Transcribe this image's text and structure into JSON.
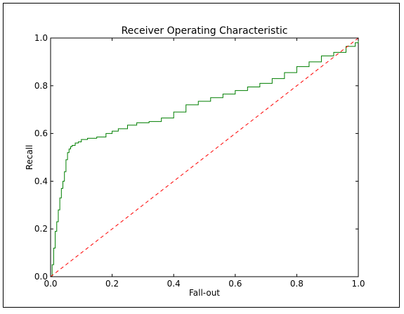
{
  "chart_data": {
    "type": "line",
    "title": "Receiver Operating Characteristic",
    "xlabel": "Fall-out",
    "ylabel": "Recall",
    "xlim": [
      0.0,
      1.0
    ],
    "ylim": [
      0.0,
      1.0
    ],
    "grid": false,
    "legend": "none",
    "x_ticks": [
      0.0,
      0.2,
      0.4,
      0.6,
      0.8,
      1.0
    ],
    "y_ticks": [
      0.0,
      0.2,
      0.4,
      0.6,
      0.8,
      1.0
    ],
    "x_tick_labels": [
      "0.0",
      "0.2",
      "0.4",
      "0.6",
      "0.8",
      "1.0"
    ],
    "y_tick_labels": [
      "0.0",
      "0.2",
      "0.4",
      "0.6",
      "0.8",
      "1.0"
    ],
    "series": [
      {
        "color": "#007f00",
        "style": "solid",
        "x": [
          0.0,
          0.005,
          0.01,
          0.015,
          0.02,
          0.025,
          0.03,
          0.035,
          0.04,
          0.045,
          0.05,
          0.055,
          0.06,
          0.065,
          0.07,
          0.08,
          0.09,
          0.1,
          0.12,
          0.15,
          0.18,
          0.2,
          0.22,
          0.25,
          0.28,
          0.32,
          0.36,
          0.4,
          0.44,
          0.48,
          0.52,
          0.56,
          0.6,
          0.64,
          0.68,
          0.72,
          0.76,
          0.8,
          0.84,
          0.88,
          0.92,
          0.96,
          0.99,
          1.0
        ],
        "y": [
          0.0,
          0.05,
          0.12,
          0.19,
          0.23,
          0.28,
          0.33,
          0.37,
          0.4,
          0.44,
          0.49,
          0.52,
          0.535,
          0.545,
          0.55,
          0.56,
          0.565,
          0.575,
          0.58,
          0.585,
          0.6,
          0.61,
          0.62,
          0.635,
          0.645,
          0.65,
          0.665,
          0.69,
          0.72,
          0.735,
          0.75,
          0.765,
          0.78,
          0.795,
          0.81,
          0.83,
          0.855,
          0.88,
          0.9,
          0.925,
          0.94,
          0.965,
          0.98,
          1.0
        ]
      },
      {
        "color": "#ff0000",
        "style": "dashed",
        "x": [
          0.0,
          1.0
        ],
        "y": [
          0.0,
          1.0
        ]
      }
    ]
  }
}
